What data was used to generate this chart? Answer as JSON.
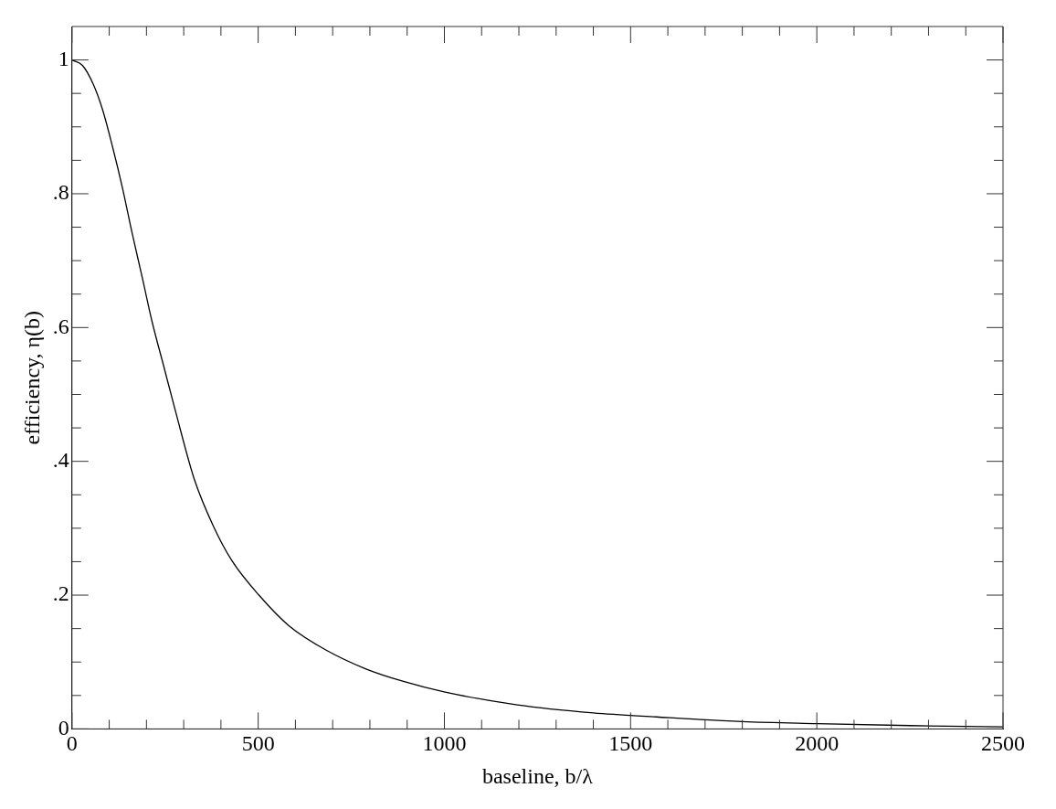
{
  "chart_data": {
    "type": "line",
    "xlabel": "baseline, b/λ",
    "ylabel": "efficiency, η(b)",
    "xlim": [
      0,
      2500
    ],
    "ylim": [
      0,
      1.05
    ],
    "xticks": [
      0,
      {
        "value": 100,
        "label": null
      },
      {
        "value": 200,
        "label": null
      },
      {
        "value": 300,
        "label": null
      },
      {
        "value": 400,
        "label": null
      },
      500,
      {
        "value": 600,
        "label": null
      },
      {
        "value": 700,
        "label": null
      },
      {
        "value": 800,
        "label": null
      },
      {
        "value": 900,
        "label": null
      },
      1000,
      {
        "value": 1100,
        "label": null
      },
      {
        "value": 1200,
        "label": null
      },
      {
        "value": 1300,
        "label": null
      },
      {
        "value": 1400,
        "label": null
      },
      1500,
      {
        "value": 1600,
        "label": null
      },
      {
        "value": 1700,
        "label": null
      },
      {
        "value": 1800,
        "label": null
      },
      {
        "value": 1900,
        "label": null
      },
      2000,
      {
        "value": 2100,
        "label": null
      },
      {
        "value": 2200,
        "label": null
      },
      {
        "value": 2300,
        "label": null
      },
      {
        "value": 2400,
        "label": null
      },
      2500
    ],
    "yticks": [
      {
        "value": 0,
        "label": "0"
      },
      {
        "value": 0.05,
        "label": null
      },
      {
        "value": 0.1,
        "label": null
      },
      {
        "value": 0.15,
        "label": null
      },
      {
        "value": 0.2,
        "label": ".2"
      },
      {
        "value": 0.25,
        "label": null
      },
      {
        "value": 0.3,
        "label": null
      },
      {
        "value": 0.35,
        "label": null
      },
      {
        "value": 0.4,
        "label": ".4"
      },
      {
        "value": 0.45,
        "label": null
      },
      {
        "value": 0.5,
        "label": null
      },
      {
        "value": 0.55,
        "label": null
      },
      {
        "value": 0.6,
        "label": ".6"
      },
      {
        "value": 0.65,
        "label": null
      },
      {
        "value": 0.7,
        "label": null
      },
      {
        "value": 0.75,
        "label": null
      },
      {
        "value": 0.8,
        "label": ".8"
      },
      {
        "value": 0.85,
        "label": null
      },
      {
        "value": 0.9,
        "label": null
      },
      {
        "value": 0.95,
        "label": null
      },
      {
        "value": 1,
        "label": "1"
      }
    ],
    "grid": false,
    "legend": false,
    "marker": "none",
    "line_style": "solid",
    "series": [
      {
        "color": "#000000",
        "x": [
          0,
          28,
          57,
          82,
          109,
          135,
          162,
          189,
          215,
          246,
          277,
          328,
          379,
          430,
          502,
          583,
          685,
          788,
          890,
          1002,
          1196,
          1400,
          1569,
          1800,
          2000,
          2250,
          2500
        ],
        "values": [
          1,
          0.992,
          0.964,
          0.926,
          0.87,
          0.81,
          0.74,
          0.674,
          0.609,
          0.543,
          0.477,
          0.374,
          0.304,
          0.251,
          0.2,
          0.154,
          0.117,
          0.09,
          0.071,
          0.055,
          0.036,
          0.024,
          0.018,
          0.011,
          0.008,
          0.005,
          0.003
        ]
      }
    ]
  }
}
